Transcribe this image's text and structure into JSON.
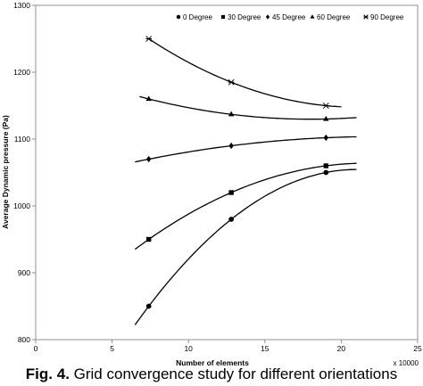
{
  "chart_data": {
    "type": "scatter",
    "title": "",
    "xlabel": "Number of elements",
    "ylabel": "Average Dynamic pressure (Pa)",
    "x_multiplier": "x 10000",
    "xlim": [
      0,
      25
    ],
    "ylim": [
      800,
      1300
    ],
    "xticks": [
      0,
      5,
      10,
      15,
      20,
      25
    ],
    "yticks": [
      800,
      900,
      1000,
      1100,
      1200,
      1300
    ],
    "grid": false,
    "legend_position": "top-right",
    "series": [
      {
        "name": "0 Degree",
        "marker": "circle",
        "x": [
          7.4,
          12.8,
          19.0
        ],
        "y": [
          850,
          980,
          1050
        ],
        "trend": {
          "x_start": 6.5,
          "x_end": 21
        }
      },
      {
        "name": "30 Degree",
        "marker": "square",
        "x": [
          7.4,
          12.8,
          19.0
        ],
        "y": [
          950,
          1020,
          1060
        ],
        "trend": {
          "x_start": 6.5,
          "x_end": 21
        }
      },
      {
        "name": "45 Degree",
        "marker": "diamond",
        "x": [
          7.4,
          12.8,
          19.0
        ],
        "y": [
          1070,
          1090,
          1102
        ],
        "trend": {
          "x_start": 6.5,
          "x_end": 21
        }
      },
      {
        "name": "60 Degree",
        "marker": "triangle",
        "x": [
          7.4,
          12.8,
          19.0
        ],
        "y": [
          1160,
          1137,
          1130
        ],
        "trend": {
          "x_start": 6.8,
          "x_end": 21
        }
      },
      {
        "name": "90 Degree",
        "marker": "asterisk",
        "x": [
          7.4,
          12.8,
          19.0
        ],
        "y": [
          1250,
          1185,
          1150
        ],
        "trend": {
          "x_start": 7.4,
          "x_end": 20
        }
      }
    ]
  },
  "caption": {
    "prefix": "Fig. 4.",
    "text": " Grid convergence study for different orientations"
  }
}
